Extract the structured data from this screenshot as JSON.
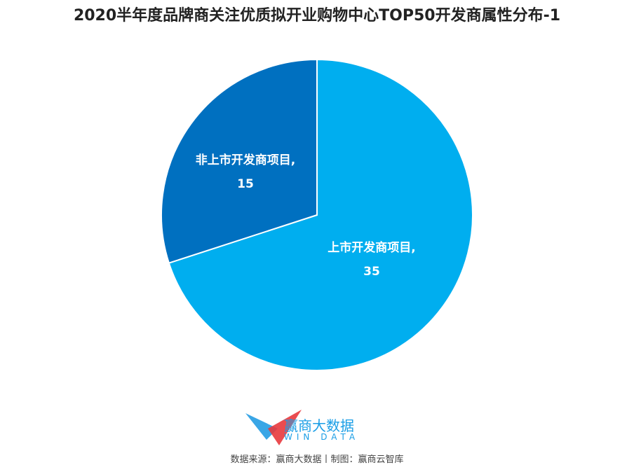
{
  "chart_data": {
    "type": "pie",
    "title": "2020半年度品牌商关注优质拟开业购物中心TOP50开发商属性分布-1",
    "slices": [
      {
        "label": "上市开发商项目",
        "value": 35,
        "color": "#00aeef"
      },
      {
        "label": "非上市开发商项目",
        "value": 15,
        "color": "#0070c0"
      }
    ],
    "data_labels": [
      "上市开发商项目,",
      "35",
      "非上市开发商项目,",
      "15"
    ]
  },
  "footer": {
    "brand_cn": "赢商大数据",
    "brand_en": "WIN DATA",
    "source": "数据来源：赢商大数据丨制图：赢商云智库"
  }
}
